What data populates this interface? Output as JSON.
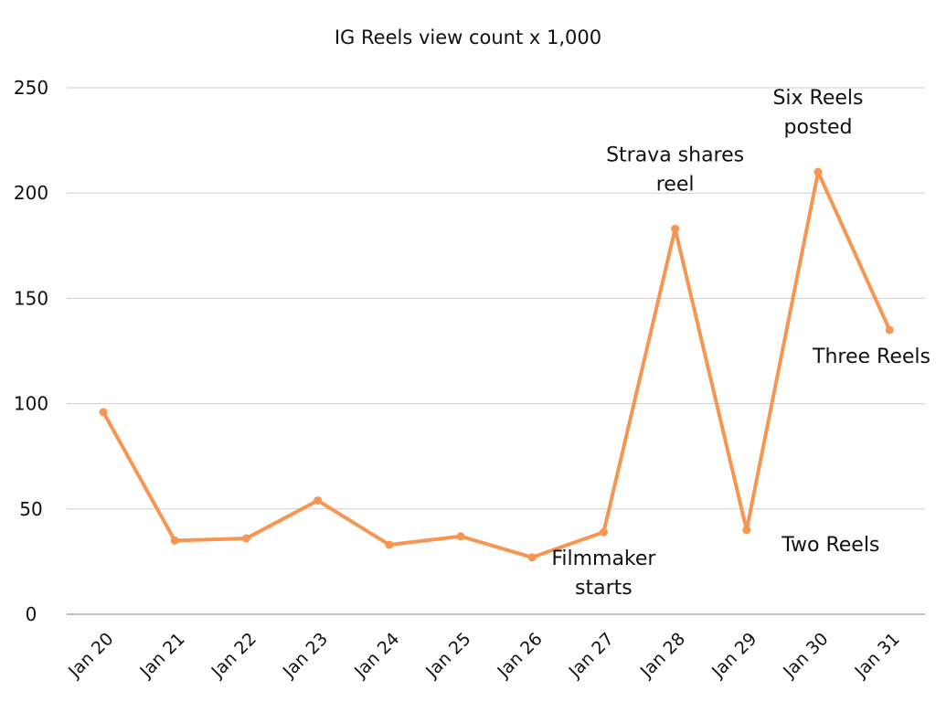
{
  "chart_data": {
    "type": "line",
    "title": "IG Reels view count x 1,000",
    "xlabel": "",
    "ylabel": "",
    "ylim": [
      0,
      250
    ],
    "yticks": [
      "0",
      "50",
      "100",
      "150",
      "200",
      "250"
    ],
    "grid": true,
    "categories": [
      "Jan 20",
      "Jan 21",
      "Jan 22",
      "Jan 23",
      "Jan 24",
      "Jan 25",
      "Jan 26",
      "Jan 27",
      "Jan 28",
      "Jan 29",
      "Jan 30",
      "Jan 31"
    ],
    "series": [
      {
        "values": [
          96,
          35,
          36,
          54,
          33,
          37,
          27,
          39,
          183,
          40,
          210,
          135
        ],
        "color": "#F79552"
      }
    ],
    "annotations": [
      {
        "category": "Jan 27",
        "lines": [
          "Filmmaker",
          "starts"
        ],
        "placement": "below"
      },
      {
        "category": "Jan 28",
        "lines": [
          "Strava shares",
          "reel"
        ],
        "placement": "above"
      },
      {
        "category": "Jan 29",
        "lines": [
          "Two Reels"
        ],
        "placement": "below-right"
      },
      {
        "category": "Jan 30",
        "lines": [
          "Six Reels",
          "posted"
        ],
        "placement": "above"
      },
      {
        "category": "Jan 31",
        "lines": [
          "Three Reels"
        ],
        "placement": "below"
      }
    ]
  }
}
